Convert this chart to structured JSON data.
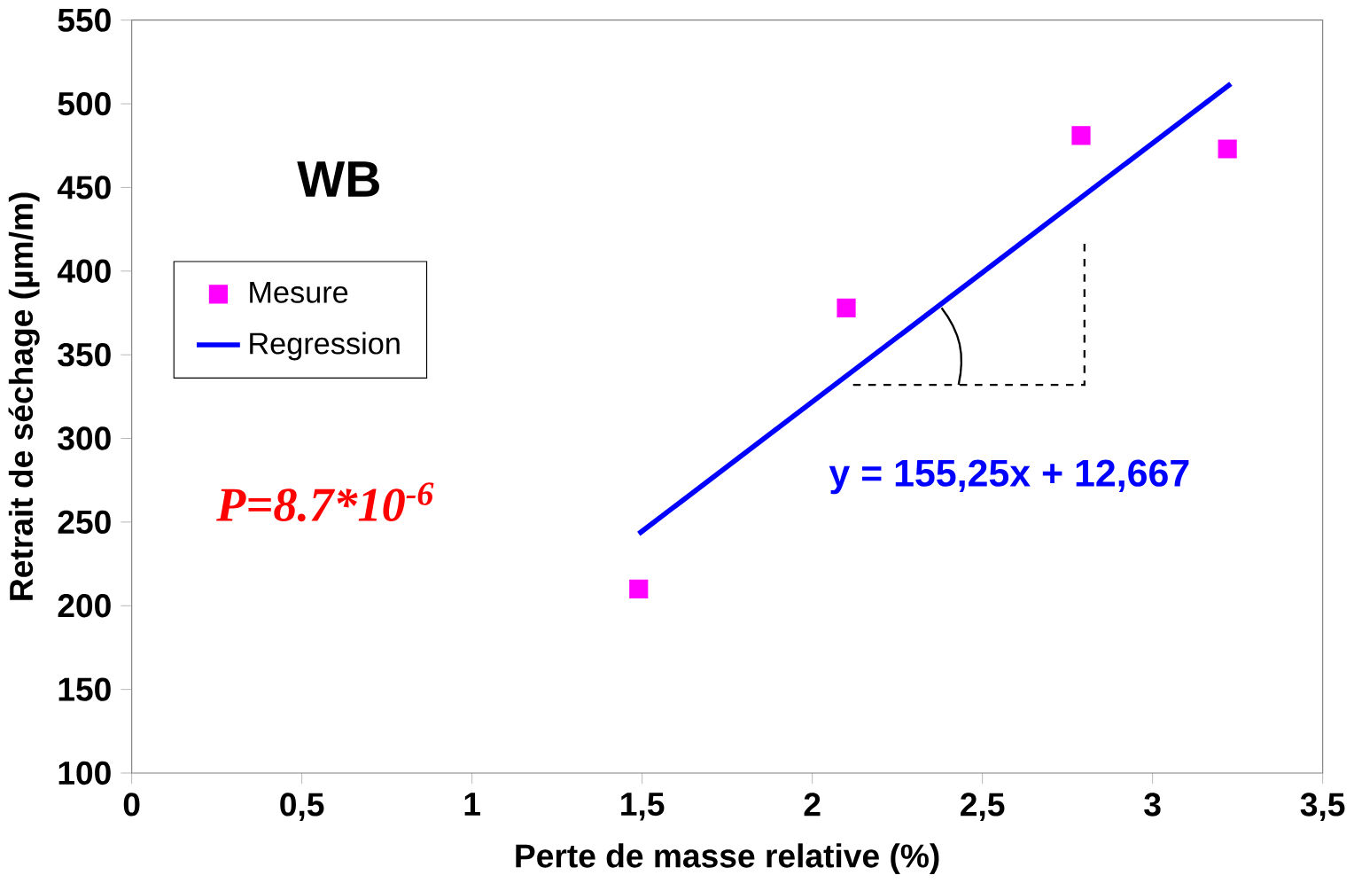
{
  "chart_data": {
    "type": "scatter",
    "xlabel": "Perte de masse relative (%)",
    "ylabel": "Retrait de séchage (µm/m)",
    "series": [
      {
        "name": "Mesure",
        "type": "scatter",
        "color": "#ff00ff",
        "marker": "square",
        "x": [
          1.49,
          2.1,
          2.79,
          3.22
        ],
        "values": [
          210,
          378,
          481,
          473
        ]
      },
      {
        "name": "Regression",
        "type": "line",
        "color": "#0000ff",
        "line_style": "solid",
        "x": [
          1.49,
          3.23
        ],
        "values": [
          243,
          512
        ]
      }
    ],
    "xlim": [
      0,
      3.5
    ],
    "ylim": [
      100,
      550
    ],
    "xticks": [
      0,
      {
        "value": 0.5,
        "label": "0,5"
      },
      1,
      {
        "value": 1.5,
        "label": "1,5"
      },
      2,
      {
        "value": 2.5,
        "label": "2,5"
      },
      3,
      {
        "value": 3.5,
        "label": "3,5"
      }
    ],
    "yticks": [
      100,
      150,
      200,
      250,
      300,
      350,
      400,
      450,
      500,
      550
    ],
    "annotations": [
      "WB",
      "y = 155,25x + 12,667",
      "P=8.7*10$^{-6}$"
    ],
    "legend": "left",
    "grid": false
  }
}
